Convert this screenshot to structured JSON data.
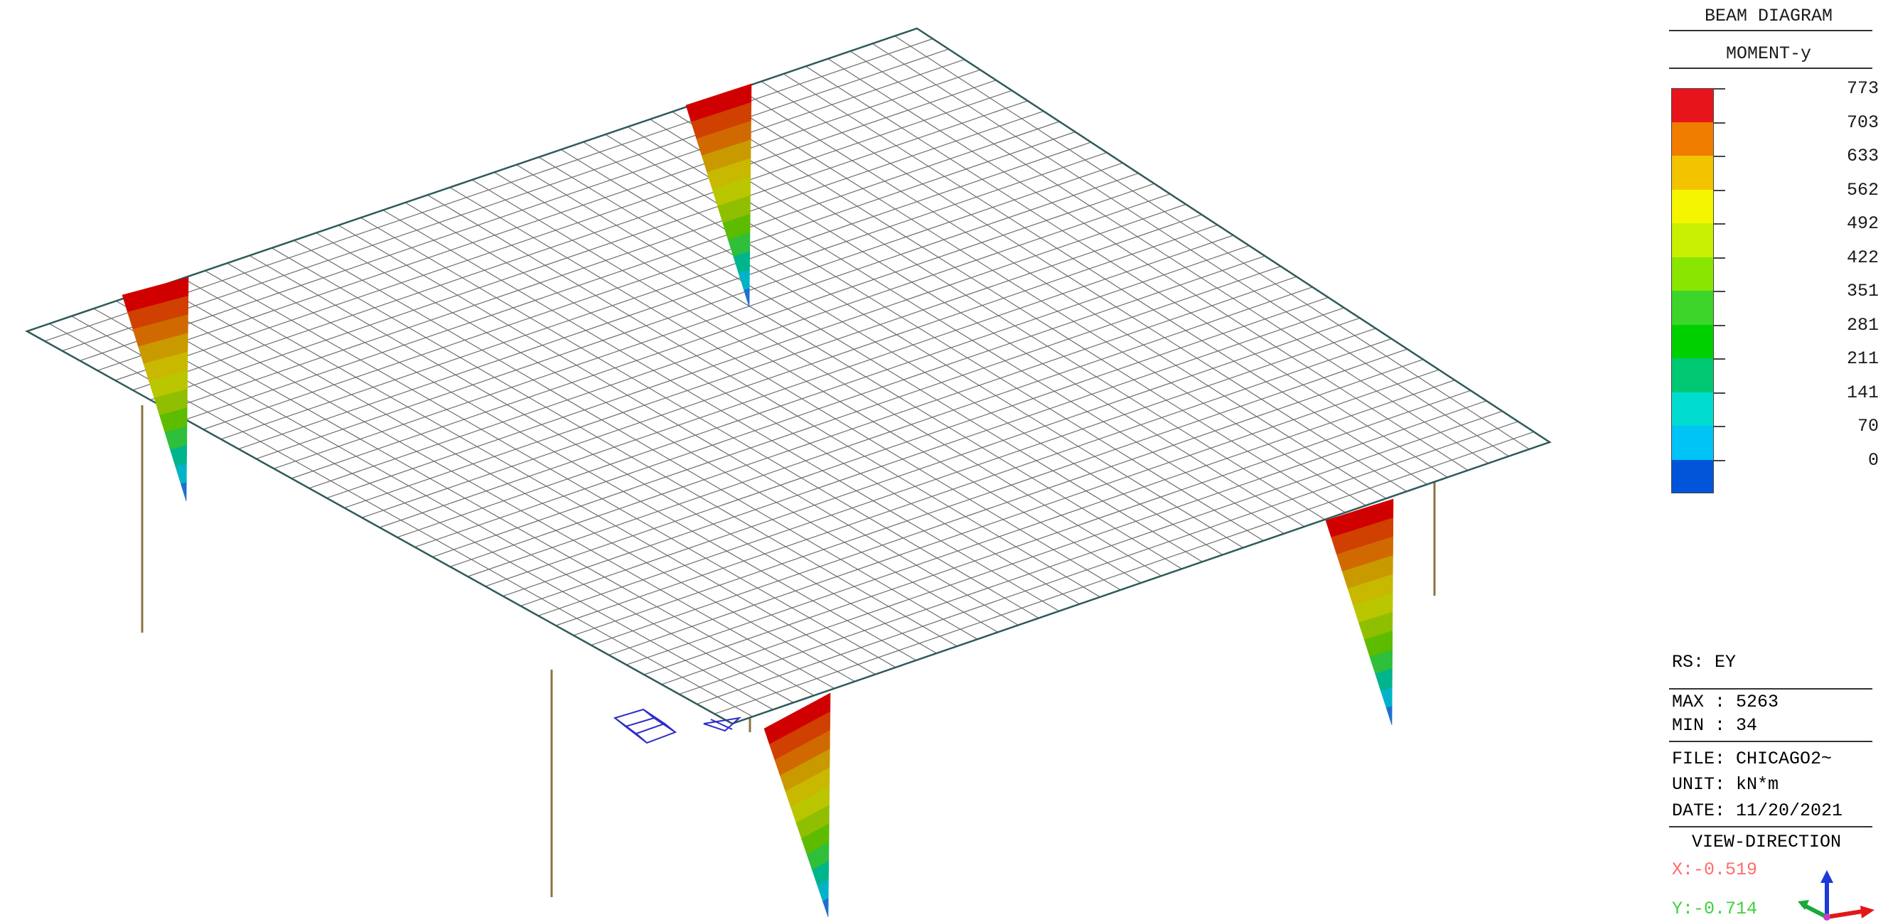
{
  "legend": {
    "title": "BEAM DIAGRAM",
    "component": "MOMENT-y",
    "values": [
      "773",
      "703",
      "633",
      "562",
      "492",
      "422",
      "351",
      "281",
      "211",
      "141",
      "70",
      "0"
    ],
    "colors": [
      "#e8141c",
      "#f07d00",
      "#f4c300",
      "#f6f500",
      "#c8f000",
      "#8ae600",
      "#3ed52a",
      "#00d000",
      "#00c873",
      "#00ddd0",
      "#00c3f6",
      "#0055d8"
    ]
  },
  "info": {
    "rs": "RS: EY",
    "max": "MAX : 5263",
    "min": "MIN : 34",
    "file": "FILE: CHICAGO2~",
    "unit": "UNIT: kN*m",
    "date": "DATE: 11/20/2021",
    "view_direction": "VIEW-DIRECTION",
    "x": "X:-0.519",
    "y": "Y:-0.714"
  },
  "model": {
    "grid_divisions": 40,
    "mesh_color": "#6f6f6f",
    "edge_color": "#2f5a5a",
    "column_color": "#8a7442",
    "moment_colors": [
      "#d00000",
      "#d04000",
      "#d06a00",
      "#c99a00",
      "#c9b800",
      "#b9c600",
      "#8fbf00",
      "#5dbc00",
      "#2fbf3a",
      "#00b48c",
      "#00b3c8",
      "#1f6fd0"
    ]
  }
}
